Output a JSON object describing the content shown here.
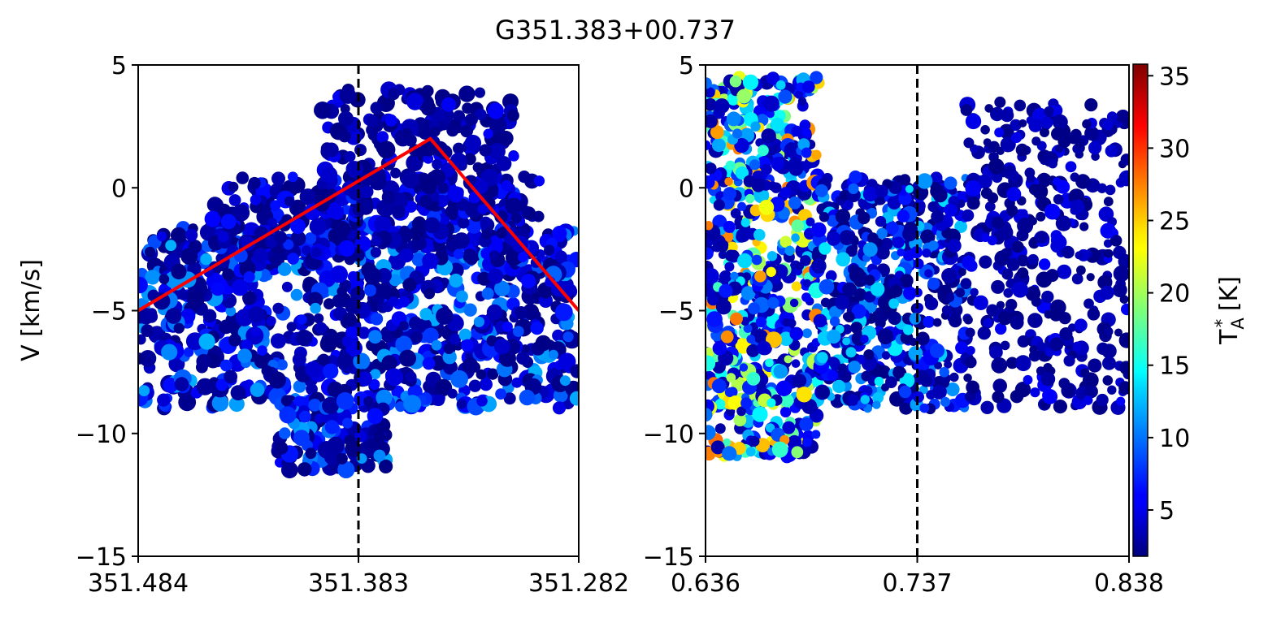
{
  "title": "G351.383+00.737",
  "colors": {
    "fit_line": "#ff0000",
    "marker_line": "#000000",
    "colormap": "jet"
  },
  "chart_data": [
    {
      "type": "scatter",
      "panel": "left",
      "xlabel": "",
      "ylabel": "V [km/s]",
      "xlim": [
        351.484,
        351.282
      ],
      "ylim": [
        -15,
        5
      ],
      "xticks": [
        "351.484",
        "351.383",
        "351.282"
      ],
      "yticks": [
        "5",
        "0",
        "−5",
        "−10",
        "−15"
      ],
      "vertical_line": {
        "x": 351.383,
        "style": "dashed"
      },
      "fit_line": {
        "x": [
          351.484,
          351.35,
          351.282
        ],
        "y": [
          -5,
          2,
          -5
        ],
        "color": "red"
      },
      "point_regions": [
        {
          "x": [
            351.484,
            351.282
          ],
          "y": [
            -9,
            -1.5
          ],
          "t": [
            2,
            12
          ]
        },
        {
          "x": [
            351.45,
            351.3
          ],
          "y": [
            -3,
            0.5
          ],
          "t": [
            2,
            8
          ]
        },
        {
          "x": [
            351.4,
            351.31
          ],
          "y": [
            -1,
            4
          ],
          "t": [
            2,
            6
          ]
        },
        {
          "x": [
            351.42,
            351.37
          ],
          "y": [
            -11.5,
            -8.5
          ],
          "t": [
            2,
            12
          ]
        }
      ]
    },
    {
      "type": "scatter",
      "panel": "right",
      "xlabel": "",
      "ylabel": "",
      "xlim": [
        0.636,
        0.838
      ],
      "ylim": [
        -15,
        5
      ],
      "xticks": [
        "0.636",
        "0.737",
        "0.838"
      ],
      "yticks": [
        "5",
        "0",
        "−5",
        "−10",
        "−15"
      ],
      "vertical_line": {
        "x": 0.737,
        "style": "dashed"
      },
      "point_regions": [
        {
          "x": [
            0.636,
            0.69
          ],
          "y": [
            -11,
            4.5
          ],
          "t": [
            3,
            28
          ]
        },
        {
          "x": [
            0.69,
            0.76
          ],
          "y": [
            -9,
            0.5
          ],
          "t": [
            2,
            14
          ]
        },
        {
          "x": [
            0.76,
            0.838
          ],
          "y": [
            -9,
            3.5
          ],
          "t": [
            2,
            6
          ]
        }
      ],
      "colorbar": {
        "label": "T*A [K]",
        "label_base": "T",
        "label_sup": "*",
        "label_sub": "A",
        "label_unit": " [K]",
        "range": [
          1.8,
          35.8
        ],
        "ticks": [
          "5",
          "10",
          "15",
          "20",
          "25",
          "30",
          "35"
        ]
      }
    }
  ]
}
